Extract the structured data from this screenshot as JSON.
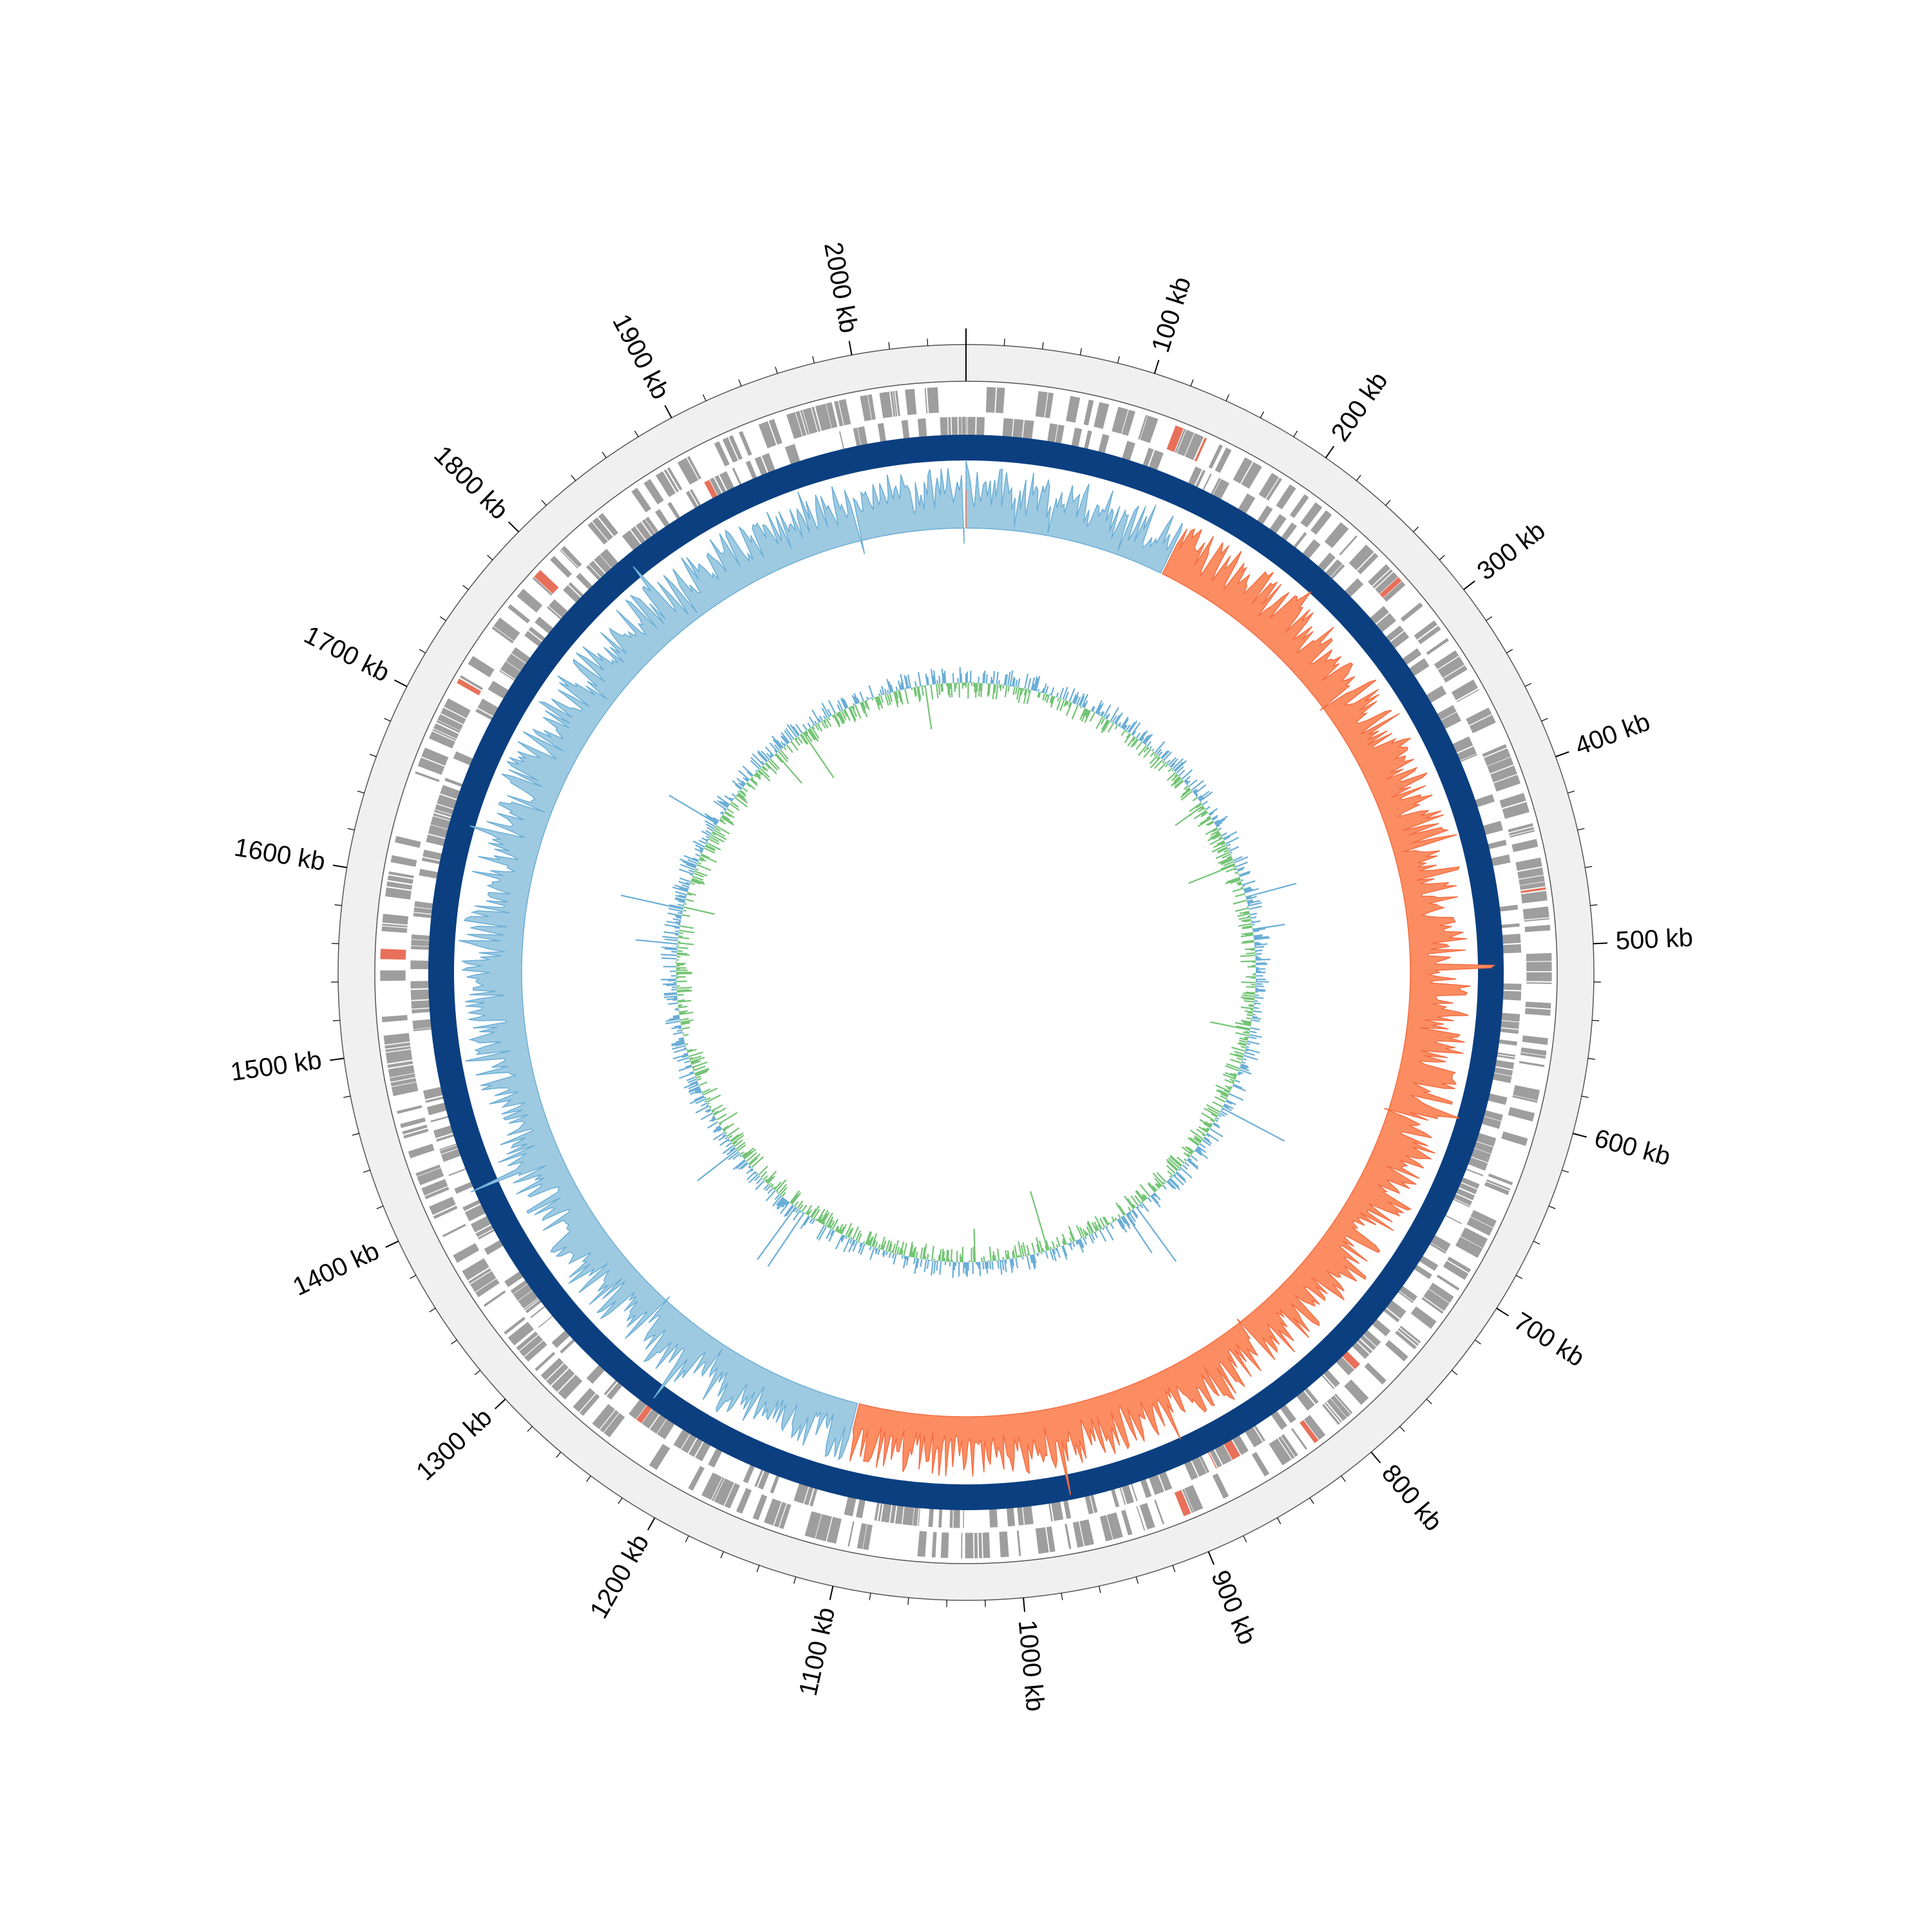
{
  "chart_data": {
    "type": "circular-genome",
    "genome_length_kb": 2060,
    "tick_labels": [
      {
        "kb": 100,
        "label": "100 kb"
      },
      {
        "kb": 200,
        "label": "200 kb"
      },
      {
        "kb": 300,
        "label": "300 kb"
      },
      {
        "kb": 400,
        "label": "400 kb"
      },
      {
        "kb": 500,
        "label": "500 kb"
      },
      {
        "kb": 600,
        "label": "600 kb"
      },
      {
        "kb": 700,
        "label": "700 kb"
      },
      {
        "kb": 800,
        "label": "800 kb"
      },
      {
        "kb": 900,
        "label": "900 kb"
      },
      {
        "kb": 1000,
        "label": "1000 kb"
      },
      {
        "kb": 1100,
        "label": "1100 kb"
      },
      {
        "kb": 1200,
        "label": "1200 kb"
      },
      {
        "kb": 1300,
        "label": "1300 kb"
      },
      {
        "kb": 1400,
        "label": "1400 kb"
      },
      {
        "kb": 1500,
        "label": "1500 kb"
      },
      {
        "kb": 1600,
        "label": "1600 kb"
      },
      {
        "kb": 1700,
        "label": "1700 kb"
      },
      {
        "kb": 1800,
        "label": "1800 kb"
      },
      {
        "kb": 1900,
        "label": "1900 kb"
      },
      {
        "kb": 2000,
        "label": "2000 kb"
      }
    ],
    "minor_tick_interval_kb": 20,
    "tracks": [
      {
        "name": "features",
        "type": "feature-blocks",
        "color": "#9e9e9e",
        "rna_color": "#e8705a"
      },
      {
        "name": "ring",
        "type": "solid-ring",
        "color": "#0b3f80"
      },
      {
        "name": "gc-skew",
        "type": "signed-area",
        "positive_color": "#9ecae1",
        "negative_color": "#fc8d62",
        "line_color": "#6baed6",
        "positive_range_kb": [
          [
            0,
            150
          ],
          [
            1110,
            2060
          ]
        ],
        "negative_range_kb": [
          [
            150,
            1110
          ]
        ]
      },
      {
        "name": "gc-content",
        "type": "signed-line",
        "positive_color": "#6baed6",
        "negative_color": "#74c476"
      }
    ]
  }
}
